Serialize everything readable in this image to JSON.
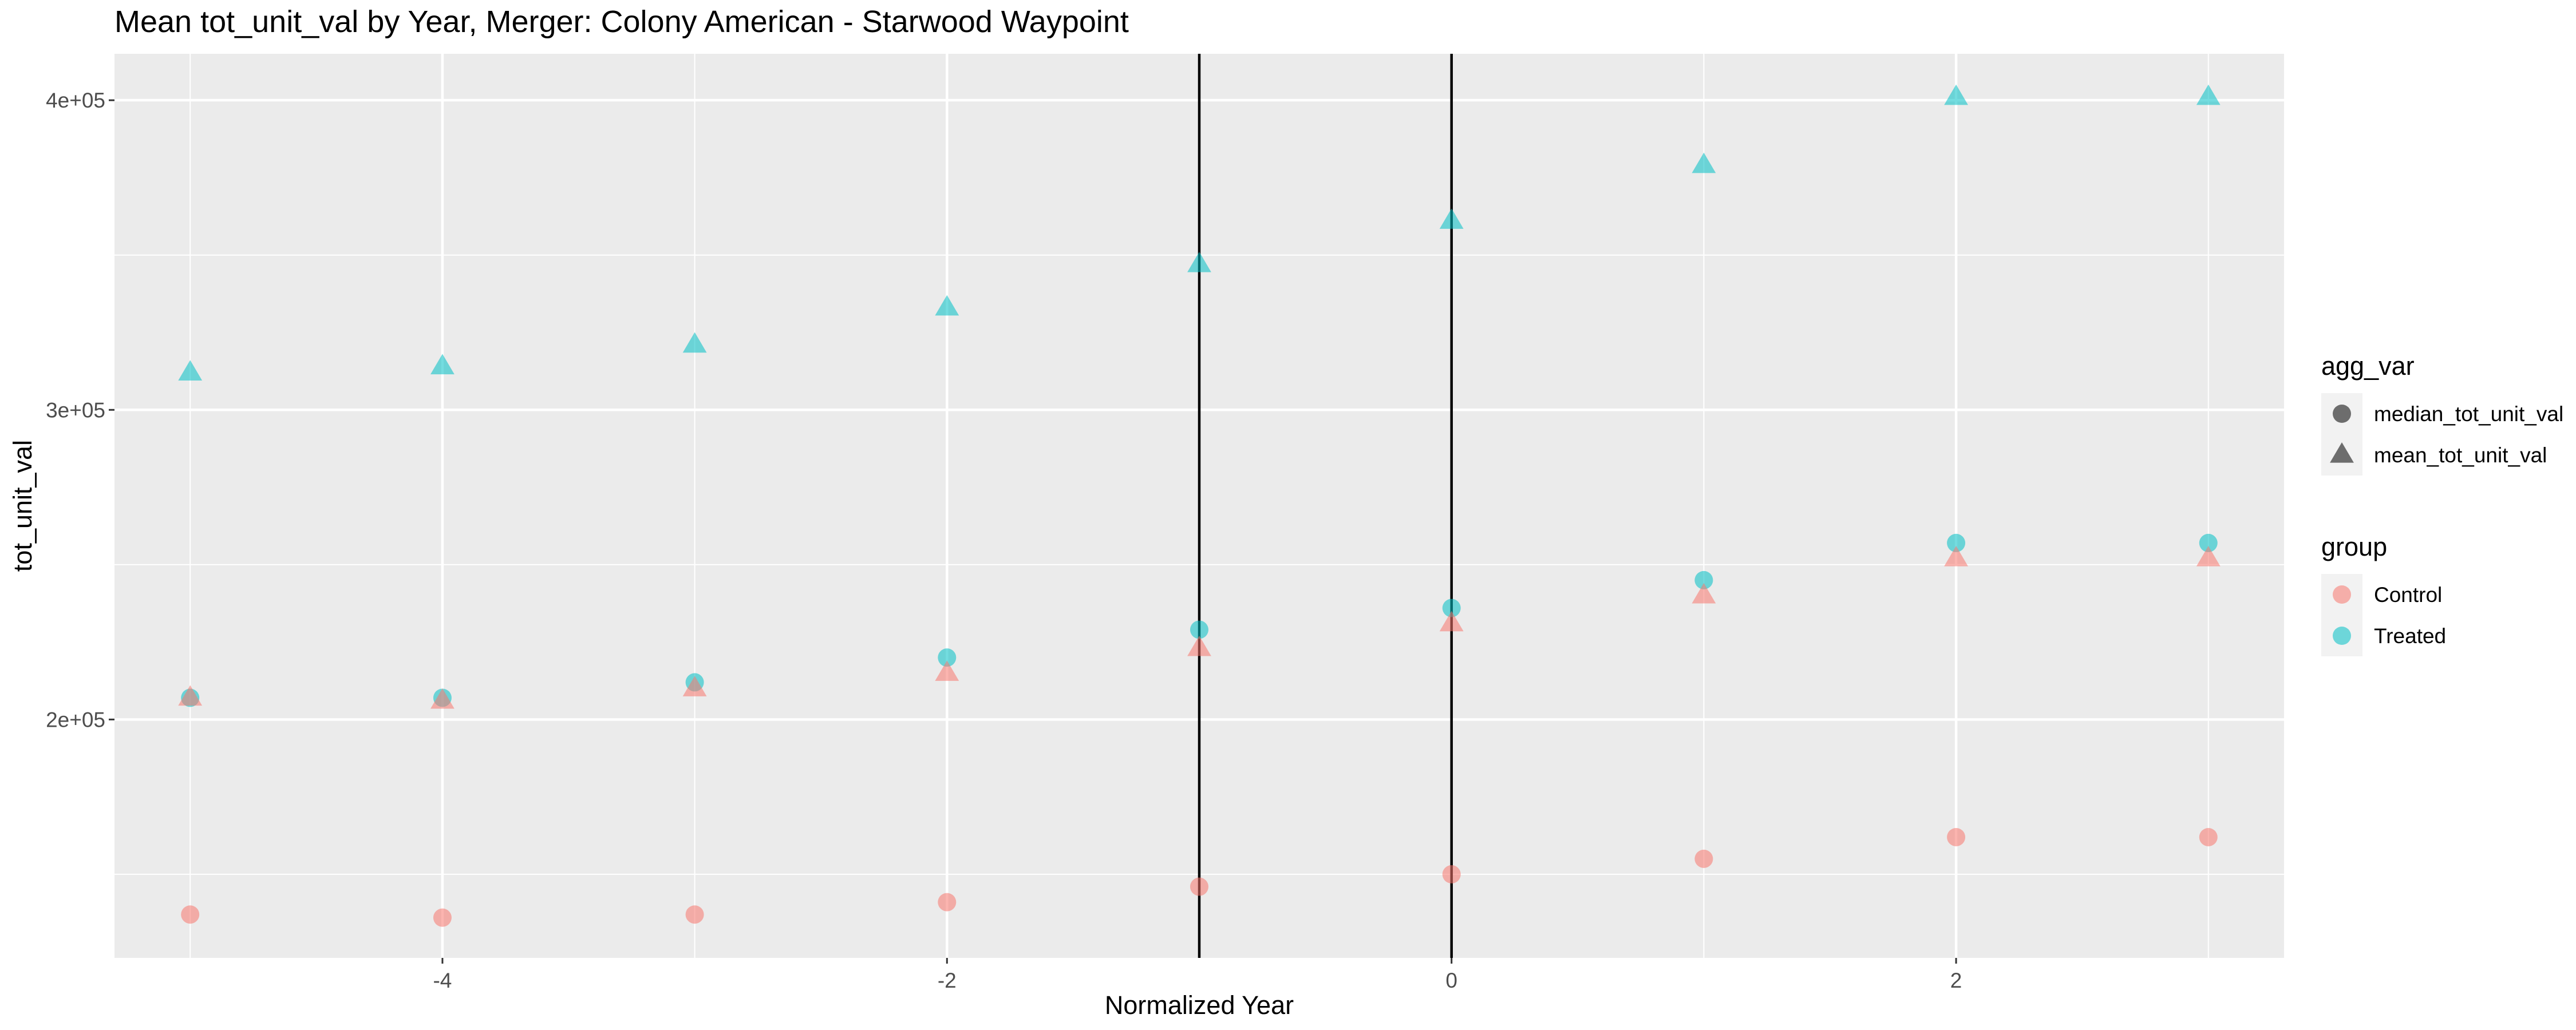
{
  "chart_data": {
    "type": "scatter",
    "title": "Mean tot_unit_val by Year, Merger: Colony American - Starwood Waypoint",
    "xlabel": "Normalized Year",
    "ylabel": "tot_unit_val",
    "xlim": [
      -5.3,
      3.3
    ],
    "ylim": [
      123000,
      415000
    ],
    "x_ticks": [
      {
        "value": -4,
        "label": "-4"
      },
      {
        "value": -2,
        "label": "-2"
      },
      {
        "value": 0,
        "label": "0"
      },
      {
        "value": 2,
        "label": "2"
      }
    ],
    "y_ticks": [
      {
        "value": 200000,
        "label": "2e+05"
      },
      {
        "value": 300000,
        "label": "3e+05"
      },
      {
        "value": 400000,
        "label": "4e+05"
      }
    ],
    "vertical_lines": [
      -1,
      0
    ],
    "grid": true,
    "legend_position": "right",
    "colors": {
      "Control": "#F8766D",
      "Treated": "#00BFC4",
      "panel": "#EBEBEB",
      "grid": "#FFFFFF",
      "vline": "#000000"
    },
    "legends": [
      {
        "title": "agg_var",
        "items": [
          {
            "label": "median_tot_unit_val",
            "shape": "circle"
          },
          {
            "label": "mean_tot_unit_val",
            "shape": "triangle"
          }
        ]
      },
      {
        "title": "group",
        "items": [
          {
            "label": "Control",
            "shape": "circle-color"
          },
          {
            "label": "Treated",
            "shape": "circle-color"
          }
        ]
      }
    ],
    "series": [
      {
        "group": "Treated",
        "agg_var": "mean_tot_unit_val",
        "shape": "triangle",
        "x": [
          -5,
          -4,
          -3,
          -2,
          -1,
          0,
          1,
          2,
          3
        ],
        "values": [
          312000,
          314000,
          321000,
          333000,
          347000,
          361000,
          379000,
          401000,
          401000
        ]
      },
      {
        "group": "Treated",
        "agg_var": "median_tot_unit_val",
        "shape": "circle",
        "x": [
          -5,
          -4,
          -3,
          -2,
          -1,
          0,
          1,
          2,
          3
        ],
        "values": [
          207000,
          207000,
          212000,
          220000,
          229000,
          236000,
          245000,
          257000,
          257000
        ]
      },
      {
        "group": "Control",
        "agg_var": "mean_tot_unit_val",
        "shape": "triangle",
        "x": [
          -5,
          -4,
          -3,
          -2,
          -1,
          0,
          1,
          2,
          3
        ],
        "values": [
          207000,
          206000,
          210000,
          215000,
          223000,
          231000,
          240000,
          252000,
          252000
        ]
      },
      {
        "group": "Control",
        "agg_var": "median_tot_unit_val",
        "shape": "circle",
        "x": [
          -5,
          -4,
          -3,
          -2,
          -1,
          0,
          1,
          2,
          3
        ],
        "values": [
          137000,
          136000,
          137000,
          141000,
          146000,
          150000,
          155000,
          162000,
          162000
        ]
      }
    ]
  }
}
